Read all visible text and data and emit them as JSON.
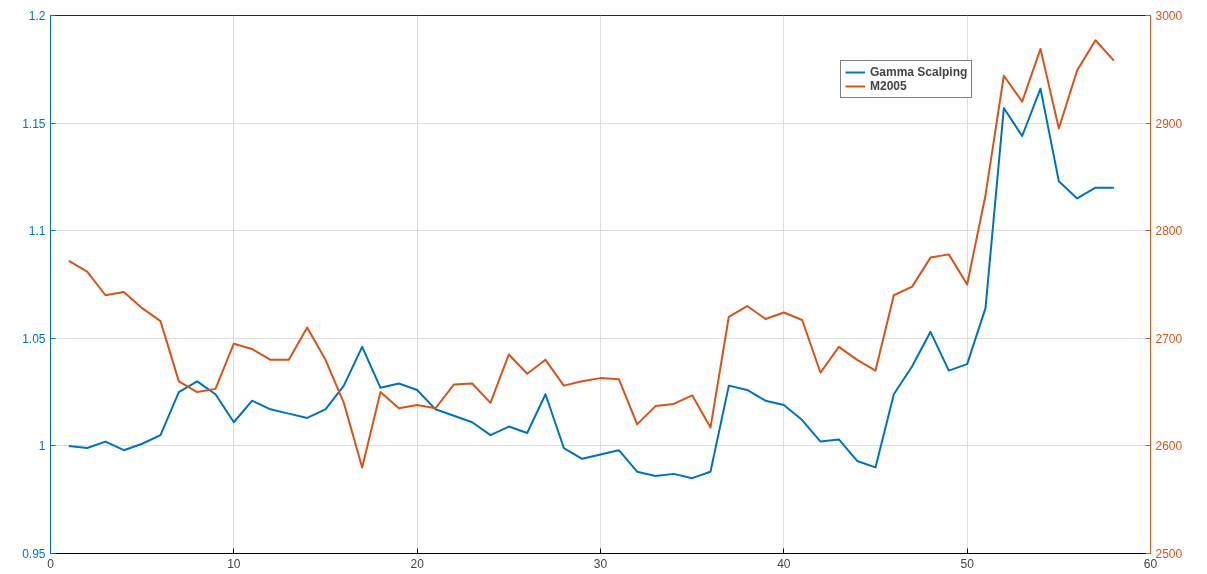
{
  "chart_data": {
    "type": "line",
    "x": [
      1,
      2,
      3,
      4,
      5,
      6,
      7,
      8,
      9,
      10,
      11,
      12,
      13,
      14,
      15,
      16,
      17,
      18,
      19,
      20,
      21,
      22,
      23,
      24,
      25,
      26,
      27,
      28,
      29,
      30,
      31,
      32,
      33,
      34,
      35,
      36,
      37,
      38,
      39,
      40,
      41,
      42,
      43,
      44,
      45,
      46,
      47,
      48,
      49,
      50,
      51,
      52,
      53,
      54,
      55,
      56,
      57,
      58
    ],
    "series": [
      {
        "name": "Gamma Scalping",
        "color": "#0072bd",
        "values": [
          1.0,
          0.999,
          1.002,
          0.998,
          1.001,
          1.005,
          1.025,
          1.03,
          1.024,
          1.011,
          1.021,
          1.017,
          1.015,
          1.013,
          1.017,
          1.028,
          1.046,
          1.027,
          1.029,
          1.026,
          1.017,
          1.014,
          1.011,
          1.005,
          1.009,
          1.006,
          1.024,
          0.999,
          0.994,
          0.996,
          0.998,
          0.988,
          0.986,
          0.987,
          0.985,
          0.988,
          1.028,
          1.026,
          1.021,
          1.019,
          1.012,
          1.002,
          1.003,
          0.993,
          0.99,
          1.024,
          1.037,
          1.053,
          1.035,
          1.038,
          1.064,
          1.157,
          1.144,
          1.166,
          1.123,
          1.115,
          1.12,
          1.12
        ]
      },
      {
        "name": "M2005",
        "color": "#d95319",
        "axis": "y2",
        "values": [
          2772,
          2762,
          2740,
          2743,
          2728,
          2716,
          2660,
          2650,
          2653,
          2695,
          2690,
          2680,
          2680,
          2710,
          2680,
          2640,
          2580,
          2650,
          2635,
          2638,
          2635,
          2657,
          2658,
          2640,
          2685,
          2667,
          2680,
          2656,
          2660,
          2663,
          2662,
          2620,
          2637,
          2639,
          2647,
          2617,
          2720,
          2730,
          2718,
          2724,
          2717,
          2668,
          2692,
          2680,
          2670,
          2740,
          2748,
          2775,
          2778,
          2750,
          2833,
          2944,
          2920,
          2969,
          2895,
          2949,
          2977,
          2958
        ]
      }
    ],
    "xlim": [
      0,
      60
    ],
    "xticks": [
      0,
      10,
      20,
      30,
      40,
      50,
      60
    ],
    "ylim": [
      0.95,
      1.2
    ],
    "yticks": [
      0.95,
      1,
      1.05,
      1.1,
      1.15,
      1.2
    ],
    "y2lim": [
      2500,
      3000
    ],
    "y2ticks": [
      2500,
      2600,
      2700,
      2800,
      2900,
      3000
    ],
    "grid": true,
    "legend": "top right",
    "line_style": "solid",
    "marker": "none"
  }
}
